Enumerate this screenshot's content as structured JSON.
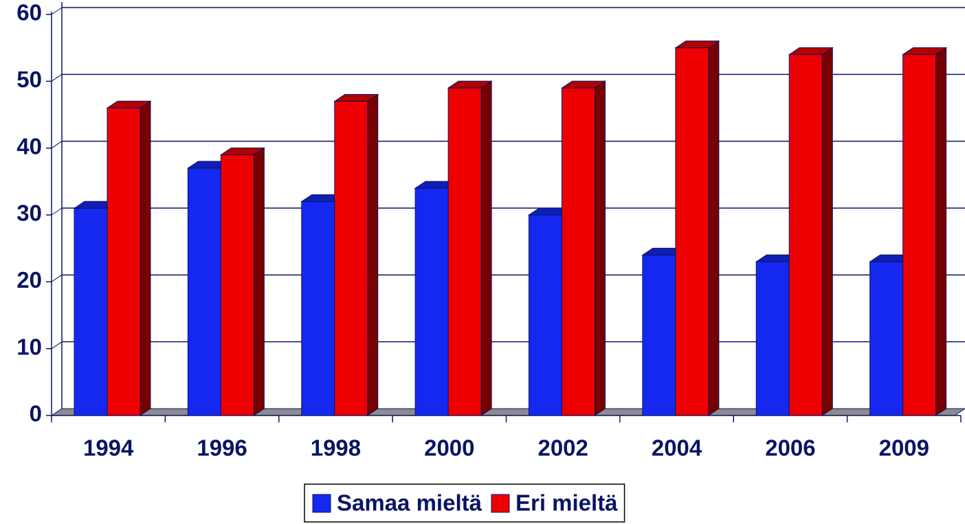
{
  "chart_data": {
    "type": "bar3d",
    "categories": [
      "1994",
      "1996",
      "1998",
      "2000",
      "2002",
      "2004",
      "2006",
      "2009"
    ],
    "series": [
      {
        "name": "Samaa mieltä",
        "color": "#1428f0",
        "values": [
          31,
          37,
          32,
          34,
          30,
          24,
          23,
          23
        ]
      },
      {
        "name": "Eri mieltä",
        "color": "#ee0000",
        "values": [
          46,
          39,
          47,
          49,
          49,
          55,
          54,
          54
        ]
      }
    ],
    "ylim": [
      0,
      60
    ],
    "yticks": [
      0,
      10,
      20,
      30,
      40,
      50,
      60
    ],
    "grid": true,
    "legend": "bottom"
  }
}
